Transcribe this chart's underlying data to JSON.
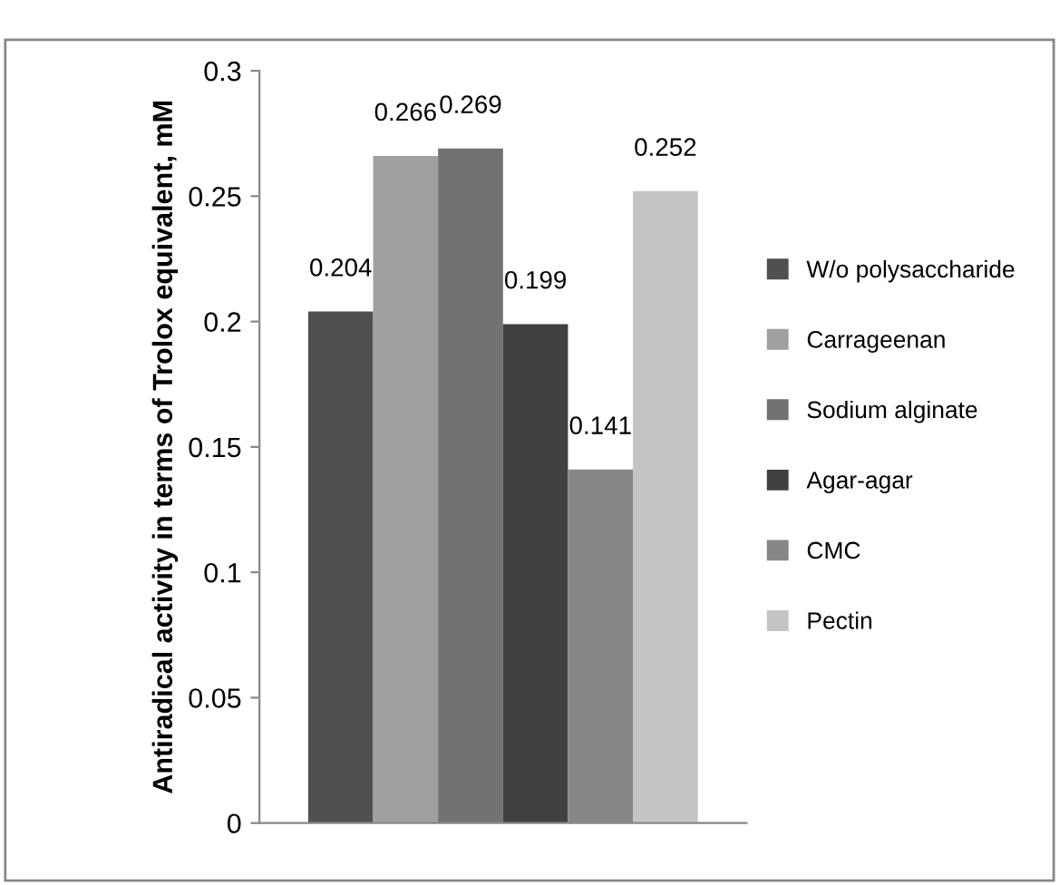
{
  "chart_data": {
    "type": "bar",
    "ylabel": "Antiradical activity in terms of Trolox equivalent, mM",
    "categories": [
      null
    ],
    "series": [
      {
        "name": "W/o polysaccharide",
        "color": "#505050",
        "values": [
          0.204
        ]
      },
      {
        "name": "Carrageenan",
        "color": "#a0a0a0",
        "values": [
          0.266
        ]
      },
      {
        "name": "Sodium alginate",
        "color": "#727272",
        "values": [
          0.269
        ]
      },
      {
        "name": "Agar-agar",
        "color": "#404040",
        "values": [
          0.199
        ]
      },
      {
        "name": "CMC",
        "color": "#878787",
        "values": [
          0.141
        ]
      },
      {
        "name": "Pectin",
        "color": "#c4c4c4",
        "values": [
          0.252
        ]
      }
    ],
    "ylim": [
      0,
      0.3
    ],
    "yticks": [
      0,
      0.05,
      0.1,
      0.15,
      0.2,
      0.25,
      0.3
    ],
    "data_labels": true,
    "grid": false,
    "legend": "right"
  }
}
